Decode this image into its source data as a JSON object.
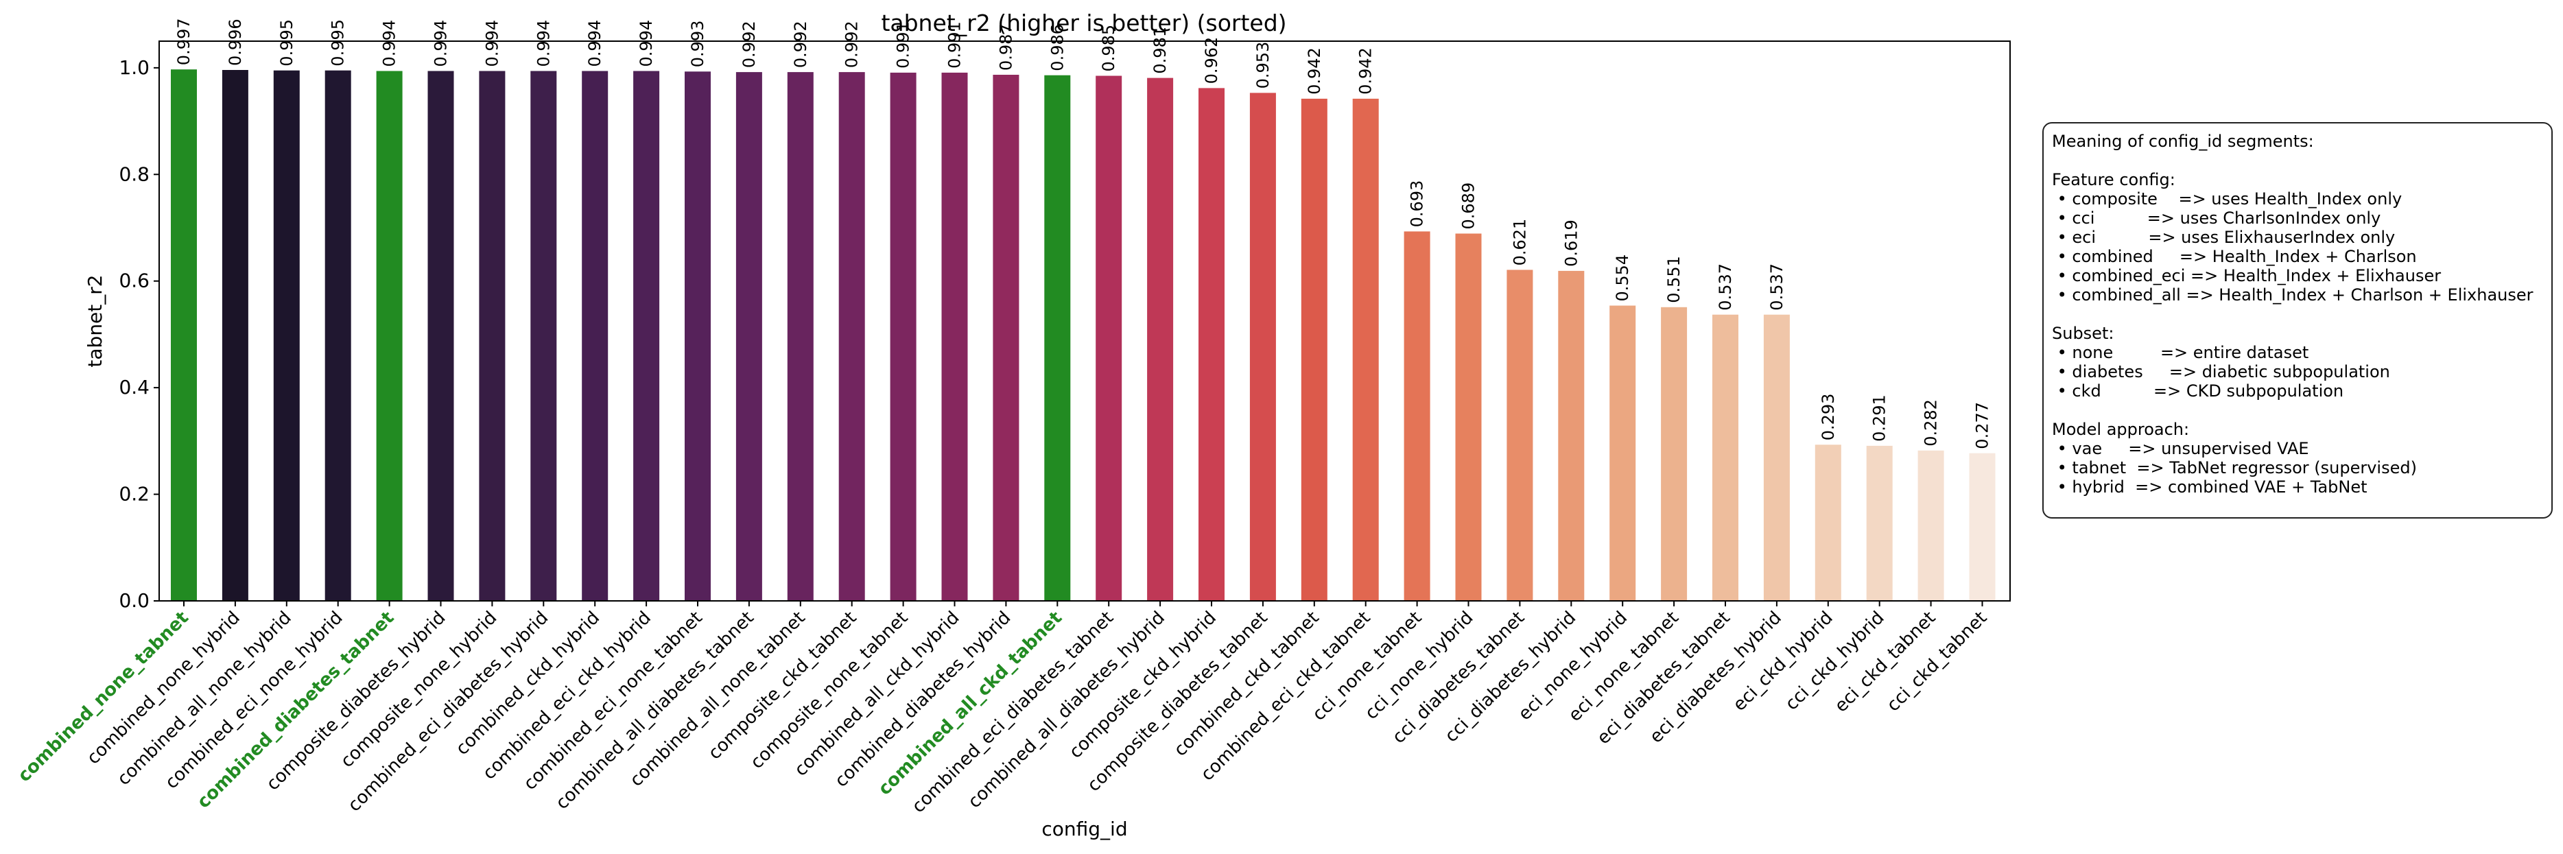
{
  "chart_data": {
    "type": "bar",
    "title": "tabnet_r2 (higher is better) (sorted)",
    "xlabel": "config_id",
    "ylabel": "tabnet_r2",
    "ylim": [
      0,
      1.05
    ],
    "yticks": [
      "0.0",
      "0.2",
      "0.4",
      "0.6",
      "0.8",
      "1.0"
    ],
    "ytick_values": [
      0,
      0.2,
      0.4,
      0.6,
      0.8,
      1.0
    ],
    "grid": false,
    "categories": [
      "combined_none_tabnet",
      "combined_none_hybrid",
      "combined_all_none_hybrid",
      "combined_eci_none_hybrid",
      "combined_diabetes_tabnet",
      "composite_diabetes_hybrid",
      "composite_none_hybrid",
      "combined_eci_diabetes_hybrid",
      "combined_ckd_hybrid",
      "combined_eci_ckd_hybrid",
      "combined_eci_none_tabnet",
      "combined_all_diabetes_tabnet",
      "combined_all_none_tabnet",
      "composite_ckd_tabnet",
      "composite_none_tabnet",
      "combined_all_ckd_hybrid",
      "combined_diabetes_hybrid",
      "combined_all_ckd_tabnet",
      "combined_eci_diabetes_tabnet",
      "combined_all_diabetes_hybrid",
      "composite_ckd_hybrid",
      "composite_diabetes_tabnet",
      "combined_ckd_tabnet",
      "combined_eci_ckd_tabnet",
      "cci_none_tabnet",
      "cci_none_hybrid",
      "cci_diabetes_tabnet",
      "cci_diabetes_hybrid",
      "eci_none_hybrid",
      "eci_none_tabnet",
      "eci_diabetes_tabnet",
      "eci_diabetes_hybrid",
      "eci_ckd_hybrid",
      "cci_ckd_hybrid",
      "eci_ckd_tabnet",
      "cci_ckd_tabnet"
    ],
    "values": [
      0.997,
      0.996,
      0.995,
      0.995,
      0.994,
      0.994,
      0.994,
      0.994,
      0.994,
      0.994,
      0.993,
      0.992,
      0.992,
      0.992,
      0.991,
      0.991,
      0.987,
      0.986,
      0.985,
      0.981,
      0.962,
      0.953,
      0.942,
      0.942,
      0.693,
      0.689,
      0.621,
      0.619,
      0.554,
      0.551,
      0.537,
      0.537,
      0.293,
      0.291,
      0.282,
      0.277
    ],
    "value_labels": [
      "0.997",
      "0.996",
      "0.995",
      "0.995",
      "0.994",
      "0.994",
      "0.994",
      "0.994",
      "0.994",
      "0.994",
      "0.993",
      "0.992",
      "0.992",
      "0.992",
      "0.991",
      "0.991",
      "0.987",
      "0.986",
      "0.985",
      "0.981",
      "0.962",
      "0.953",
      "0.942",
      "0.942",
      "0.693",
      "0.689",
      "0.621",
      "0.619",
      "0.554",
      "0.551",
      "0.537",
      "0.537",
      "0.293",
      "0.291",
      "0.282",
      "0.277"
    ],
    "highlighted": [
      0,
      4,
      17
    ],
    "highlight_color": "#228b22",
    "bar_colors": [
      "#228b22",
      "#1b1428",
      "#1d152c",
      "#201730",
      "#228b22",
      "#2b1a3a",
      "#371d44",
      "#3e1f4b",
      "#461f51",
      "#4e2156",
      "#56225a",
      "#5f235d",
      "#68245e",
      "#72255f",
      "#7c265f",
      "#86275e",
      "#91295d",
      "#228b22",
      "#b0305a",
      "#bf3856",
      "#cb4052",
      "#d54d4e",
      "#dc5a4b",
      "#e16750",
      "#e47456",
      "#e6815e",
      "#e88d69",
      "#e99a75",
      "#eba781",
      "#ecb28e",
      "#eebd9c",
      "#f0c6a9",
      "#f2cfb6",
      "#f3d8c4",
      "#f5e0d1",
      "#f7e8de"
    ]
  },
  "legend_text": [
    "Meaning of config_id segments:",
    "",
    "Feature config:",
    " • composite    => uses Health_Index only",
    " • cci          => uses CharlsonIndex only",
    " • eci          => uses ElixhauserIndex only",
    " • combined     => Health_Index + Charlson",
    " • combined_eci => Health_Index + Elixhauser",
    " • combined_all => Health_Index + Charlson + Elixhauser",
    "",
    "Subset:",
    " • none         => entire dataset",
    " • diabetes     => diabetic subpopulation",
    " • ckd          => CKD subpopulation",
    "",
    "Model approach:",
    " • vae     => unsupervised VAE",
    " • tabnet  => TabNet regressor (supervised)",
    " • hybrid  => combined VAE + TabNet"
  ]
}
